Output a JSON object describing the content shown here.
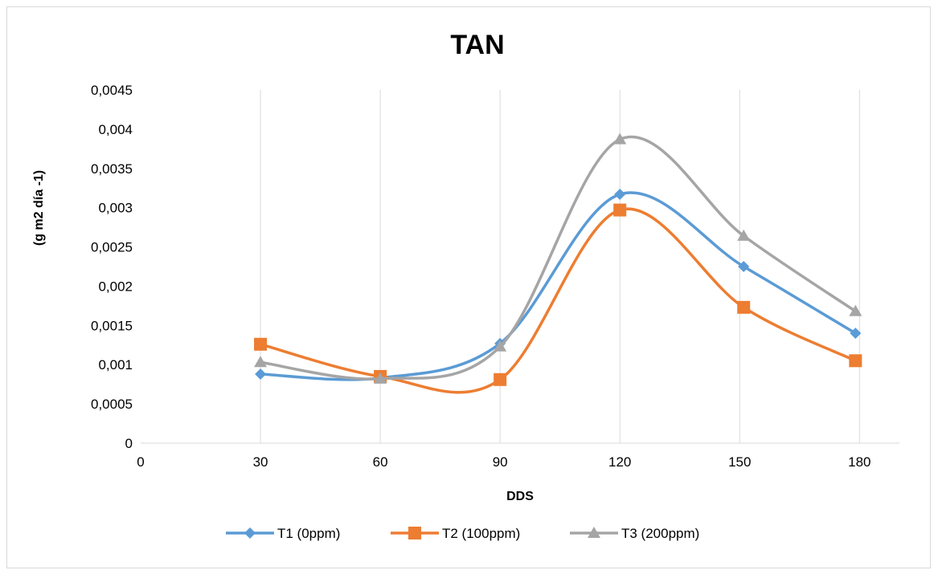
{
  "chart_data": {
    "type": "line",
    "title": "TAN",
    "xlabel": "DDS",
    "ylabel": "(g m2 día -1)",
    "xlim": [
      0,
      190
    ],
    "ylim": [
      0,
      0.0045
    ],
    "x_ticks": [
      0,
      30,
      60,
      90,
      120,
      150,
      180
    ],
    "x_tick_labels": [
      "0",
      "30",
      "60",
      "90",
      "120",
      "150",
      "180"
    ],
    "y_ticks": [
      0,
      0.0005,
      0.001,
      0.0015,
      0.002,
      0.0025,
      0.003,
      0.0035,
      0.004,
      0.0045
    ],
    "y_tick_labels": [
      "0",
      "0,0005",
      "0,001",
      "0,0015",
      "0,002",
      "0,0025",
      "0,003",
      "0,0035",
      "0,004",
      "0,0045"
    ],
    "grid": "vertical",
    "legend_position": "bottom",
    "smooth": true,
    "series": [
      {
        "name": "T1 (0ppm)",
        "color": "#5B9BD5",
        "marker": "diamond",
        "x": [
          30,
          60,
          90,
          120,
          151,
          179
        ],
        "y": [
          0.00088,
          0.00083,
          0.00127,
          0.00317,
          0.00225,
          0.0014
        ]
      },
      {
        "name": "T2 (100ppm)",
        "color": "#ED7D31",
        "marker": "square",
        "x": [
          30,
          60,
          90,
          120,
          151,
          179
        ],
        "y": [
          0.00126,
          0.00085,
          0.00081,
          0.00297,
          0.00173,
          0.00105
        ]
      },
      {
        "name": "T3 (200ppm)",
        "color": "#A5A5A5",
        "marker": "triangle",
        "x": [
          30,
          60,
          90,
          120,
          151,
          179
        ],
        "y": [
          0.00103,
          0.00082,
          0.00123,
          0.00387,
          0.00264,
          0.00168
        ]
      }
    ]
  }
}
